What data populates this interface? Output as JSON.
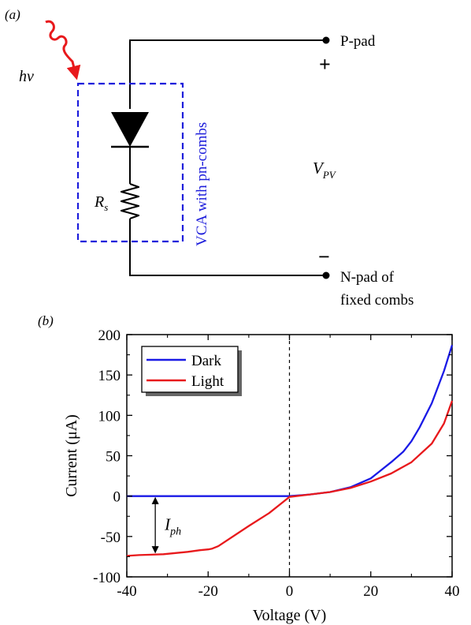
{
  "panel_a": {
    "label": "(a)",
    "light_symbol": "hν",
    "p_pad": "P-pad",
    "plus": "+",
    "minus": "−",
    "voltage_label": "V",
    "voltage_subscript": "PV",
    "resistor_label": "R",
    "resistor_subscript": "s",
    "box_label": "VCA with pn-combs",
    "n_pad_line1": "N-pad of",
    "n_pad_line2": "fixed combs",
    "colors": {
      "light_arrow": "#e8191c",
      "box": "#1d1ddb",
      "wire": "#000000"
    }
  },
  "panel_b": {
    "label": "(b)",
    "annotation_main": "I",
    "annotation_sub": "ph"
  },
  "chart_data": {
    "type": "line",
    "xlabel": "Voltage (V)",
    "ylabel": "Current (μA)",
    "xlim": [
      -40,
      40
    ],
    "ylim": [
      -100,
      200
    ],
    "xticks": [
      -40,
      -20,
      0,
      20,
      40
    ],
    "yticks": [
      -100,
      -50,
      0,
      50,
      100,
      150,
      200
    ],
    "grid": false,
    "legend_position": "top-left",
    "vline_x": 0,
    "series": [
      {
        "name": "Dark",
        "color": "#1a1ae6",
        "x": [
          -40,
          -30,
          -20,
          -10,
          -5,
          0,
          5,
          10,
          15,
          20,
          22,
          25,
          28,
          30,
          32,
          35,
          38,
          40
        ],
        "y": [
          0,
          0,
          0,
          0,
          0,
          0,
          2,
          5,
          11,
          22,
          30,
          42,
          55,
          68,
          85,
          115,
          155,
          187
        ]
      },
      {
        "name": "Light",
        "color": "#e8191c",
        "x": [
          -40,
          -37,
          -34,
          -31,
          -28,
          -25,
          -22,
          -20,
          -19,
          -17.5,
          -10,
          -5,
          0,
          5,
          10,
          15,
          20,
          25,
          30,
          35,
          38,
          40
        ],
        "y": [
          -74,
          -73,
          -72.5,
          -72,
          -70.5,
          -69,
          -67,
          -66,
          -65,
          -62,
          -37,
          -21,
          -1,
          2,
          5,
          10,
          18,
          28,
          42,
          65,
          90,
          118
        ]
      }
    ]
  }
}
